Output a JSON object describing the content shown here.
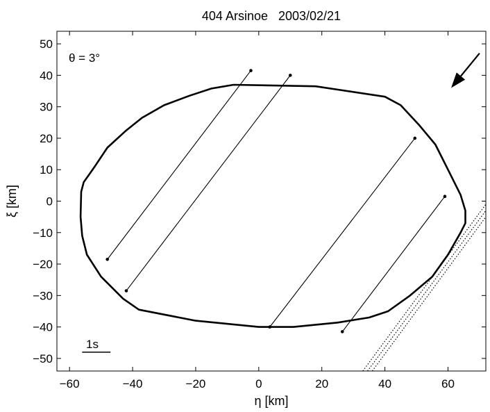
{
  "chart_data": {
    "type": "scatter",
    "title": "404 Arsinoe   2003/02/21",
    "xlabel": "η [km]",
    "ylabel": "ξ [km]",
    "xlim": [
      -64,
      72
    ],
    "ylim": [
      -54,
      54
    ],
    "xticks": [
      -60,
      -40,
      -20,
      0,
      20,
      40,
      60
    ],
    "yticks": [
      -50,
      -40,
      -30,
      -20,
      -10,
      0,
      10,
      20,
      30,
      40,
      50
    ],
    "xtick_labels": [
      "−60",
      "−40",
      "−20",
      "0",
      "20",
      "40",
      "60"
    ],
    "ytick_labels": [
      "−50",
      "−40",
      "−30",
      "−20",
      "−10",
      "0",
      "10",
      "20",
      "30",
      "40",
      "50"
    ],
    "grid": false,
    "annotation": "θ = 3°",
    "scale_bar_label": "1s",
    "scale_bar": [
      [
        -56,
        -48
      ],
      [
        -47,
        -48
      ]
    ],
    "direction_arrow": {
      "from": [
        70,
        47
      ],
      "to": [
        61,
        36
      ]
    },
    "profile": [
      [
        -8,
        37
      ],
      [
        18,
        36.5
      ],
      [
        40,
        33.2
      ],
      [
        45,
        30.5
      ],
      [
        51,
        24
      ],
      [
        56,
        18
      ],
      [
        60,
        10
      ],
      [
        64,
        2
      ],
      [
        65.5,
        -3
      ],
      [
        65.5,
        -7
      ],
      [
        64,
        -10
      ],
      [
        60,
        -17
      ],
      [
        55,
        -24
      ],
      [
        48,
        -30
      ],
      [
        41,
        -35
      ],
      [
        35,
        -37
      ],
      [
        25,
        -38.6
      ],
      [
        11,
        -40
      ],
      [
        0,
        -40
      ],
      [
        -20,
        -38
      ],
      [
        -38,
        -34.5
      ],
      [
        -43,
        -31
      ],
      [
        -50,
        -24
      ],
      [
        -54.5,
        -17
      ],
      [
        -56,
        -11
      ],
      [
        -56.5,
        -5
      ],
      [
        -56.3,
        3
      ],
      [
        -55.5,
        6
      ],
      [
        -52,
        11
      ],
      [
        -48,
        17
      ],
      [
        -42,
        22.5
      ],
      [
        -37,
        26.5
      ],
      [
        -30,
        30.5
      ],
      [
        -22,
        33.5
      ],
      [
        -15,
        35.8
      ],
      [
        -8,
        37
      ]
    ],
    "chords": [
      [
        [
          -48,
          -18.5
        ],
        [
          -2.5,
          41.5
        ]
      ],
      [
        [
          -42,
          -28.5
        ],
        [
          10,
          40
        ]
      ],
      [
        [
          3.5,
          -40
        ],
        [
          49.5,
          20
        ]
      ],
      [
        [
          26.5,
          -41.5
        ],
        [
          59,
          1.5
        ]
      ]
    ],
    "negative_chords": [
      [
        [
          33,
          -54
        ],
        [
          72,
          -1
        ]
      ],
      [
        [
          34.5,
          -54
        ],
        [
          72,
          -3
        ]
      ],
      [
        [
          36,
          -54
        ],
        [
          72,
          -5
        ]
      ]
    ]
  }
}
